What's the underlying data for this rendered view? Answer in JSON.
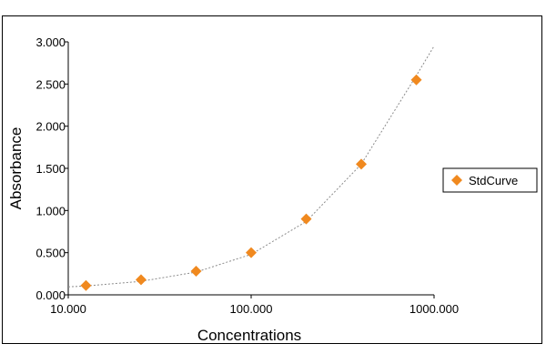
{
  "chart_data": {
    "type": "scatter",
    "xlabel": "Concentrations",
    "ylabel": "Absorbance",
    "x_scale": "log",
    "xlim": [
      10,
      1000
    ],
    "ylim": [
      0,
      3
    ],
    "x_ticks": [
      10,
      100,
      1000
    ],
    "x_tick_labels": [
      "10.000",
      "100.000",
      "1000.000"
    ],
    "y_ticks": [
      0,
      0.5,
      1,
      1.5,
      2,
      2.5,
      3
    ],
    "y_tick_labels": [
      "0.000",
      "0.500",
      "1.000",
      "1.500",
      "2.000",
      "2.500",
      "3.000"
    ],
    "grid": false,
    "legend_position": "right",
    "series": [
      {
        "name": "StdCurve",
        "color": "#f0891f",
        "marker": "diamond",
        "x": [
          12.5,
          25,
          50,
          100,
          200,
          400,
          800
        ],
        "y": [
          0.11,
          0.18,
          0.28,
          0.5,
          0.9,
          1.55,
          2.55
        ]
      }
    ],
    "fit_curve": {
      "style": "dotted",
      "color": "#8c8c8c",
      "x": [
        10,
        12.5,
        25,
        50,
        100,
        200,
        400,
        800,
        1000
      ],
      "y": [
        0.095,
        0.105,
        0.16,
        0.27,
        0.48,
        0.87,
        1.55,
        2.6,
        2.95
      ]
    }
  }
}
